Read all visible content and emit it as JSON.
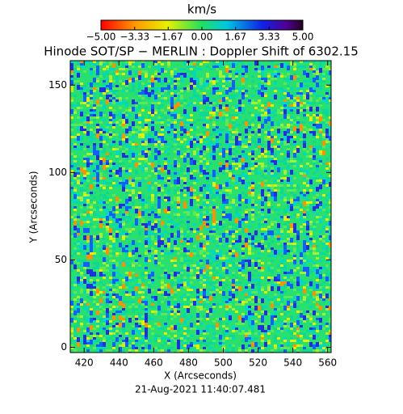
{
  "chart_data": {
    "type": "heatmap",
    "title": "Hinode SOT/SP − MERLIN : Doppler Shift of 6302.15",
    "colorbar_label": "km/s",
    "clim": [
      -5,
      5
    ],
    "cticks": [
      {
        "value": -5,
        "label": "−5.00"
      },
      {
        "value": -3.33,
        "label": "−3.33"
      },
      {
        "value": -1.67,
        "label": "−1.67"
      },
      {
        "value": 0,
        "label": "0.00"
      },
      {
        "value": 1.67,
        "label": "1.67"
      },
      {
        "value": 3.33,
        "label": "3.33"
      },
      {
        "value": 5,
        "label": "5.00"
      }
    ],
    "x_label": "X (Arcseconds)",
    "y_label": "Y (Arcseconds)",
    "xlim": [
      412,
      562
    ],
    "xticks": [
      420,
      440,
      460,
      480,
      500,
      520,
      540,
      560
    ],
    "ylim": [
      -3,
      164
    ],
    "yticks": [
      0,
      50,
      100,
      150
    ],
    "footer": "21-Aug-2021 11:40:07.481"
  }
}
